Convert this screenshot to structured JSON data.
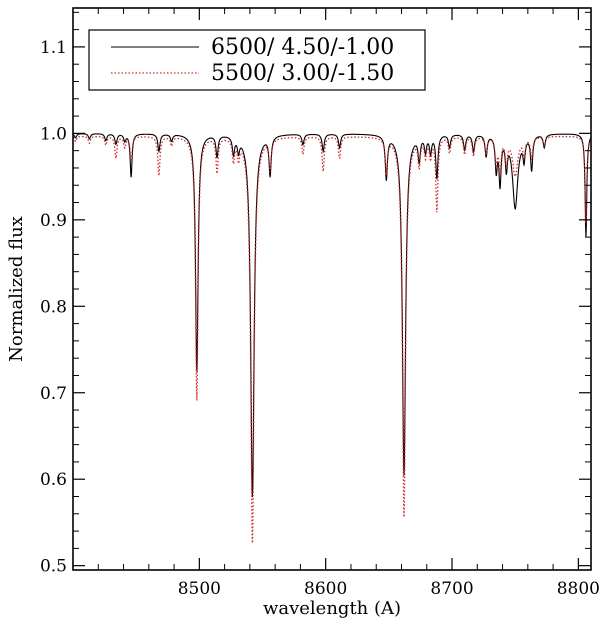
{
  "chart_data": {
    "type": "line",
    "xlabel": "wavelength (A)",
    "ylabel": "Normalized flux",
    "xlim": [
      8400,
      8810
    ],
    "ylim": [
      0.495,
      1.145
    ],
    "xticks": [
      8500,
      8600,
      8700,
      8800
    ],
    "yticks": [
      0.5,
      0.6,
      0.7,
      0.8,
      0.9,
      1.0,
      1.1
    ],
    "legend_position": "top-left",
    "grid": false,
    "series": [
      {
        "name": "6500/ 4.50/-1.00",
        "color": "#000000",
        "style": "solid",
        "continuum": 1.0,
        "lines": [
          {
            "x": 8402,
            "depth": 0.005,
            "width": 1.0
          },
          {
            "x": 8413,
            "depth": 0.006,
            "width": 1.0
          },
          {
            "x": 8426,
            "depth": 0.008,
            "width": 1.0
          },
          {
            "x": 8434,
            "depth": 0.012,
            "width": 1.0
          },
          {
            "x": 8441,
            "depth": 0.008,
            "width": 1.0
          },
          {
            "x": 8446,
            "depth": 0.05,
            "width": 0.9
          },
          {
            "x": 8468,
            "depth": 0.02,
            "width": 1.0
          },
          {
            "x": 8478,
            "depth": 0.008,
            "width": 1.0
          },
          {
            "x": 8498,
            "depth": 0.275,
            "width": 1.2
          },
          {
            "x": 8514,
            "depth": 0.025,
            "width": 1.0
          },
          {
            "x": 8527,
            "depth": 0.02,
            "width": 1.0
          },
          {
            "x": 8531,
            "depth": 0.015,
            "width": 1.0
          },
          {
            "x": 8542,
            "depth": 0.42,
            "width": 1.6
          },
          {
            "x": 8556,
            "depth": 0.045,
            "width": 1.0
          },
          {
            "x": 8582,
            "depth": 0.012,
            "width": 1.0
          },
          {
            "x": 8598,
            "depth": 0.02,
            "width": 1.0
          },
          {
            "x": 8611,
            "depth": 0.016,
            "width": 1.0
          },
          {
            "x": 8648,
            "depth": 0.05,
            "width": 1.0
          },
          {
            "x": 8662,
            "depth": 0.395,
            "width": 1.5
          },
          {
            "x": 8674,
            "depth": 0.028,
            "width": 1.0
          },
          {
            "x": 8679,
            "depth": 0.018,
            "width": 1.0
          },
          {
            "x": 8683,
            "depth": 0.02,
            "width": 1.0
          },
          {
            "x": 8688,
            "depth": 0.05,
            "width": 1.0
          },
          {
            "x": 8698,
            "depth": 0.015,
            "width": 1.0
          },
          {
            "x": 8710,
            "depth": 0.018,
            "width": 1.0
          },
          {
            "x": 8717,
            "depth": 0.02,
            "width": 1.0
          },
          {
            "x": 8727,
            "depth": 0.025,
            "width": 1.0
          },
          {
            "x": 8735,
            "depth": 0.04,
            "width": 1.0
          },
          {
            "x": 8738,
            "depth": 0.055,
            "width": 1.0
          },
          {
            "x": 8743,
            "depth": 0.035,
            "width": 1.0
          },
          {
            "x": 8750,
            "depth": 0.085,
            "width": 2.5
          },
          {
            "x": 8757,
            "depth": 0.025,
            "width": 1.0
          },
          {
            "x": 8763,
            "depth": 0.04,
            "width": 1.0
          },
          {
            "x": 8773,
            "depth": 0.015,
            "width": 1.0
          },
          {
            "x": 8806,
            "depth": 0.12,
            "width": 0.8
          }
        ]
      },
      {
        "name": "5500/ 3.00/-1.50",
        "color": "#d62728",
        "style": "dotted",
        "continuum": 0.997,
        "lines": [
          {
            "x": 8402,
            "depth": 0.006,
            "width": 1.0
          },
          {
            "x": 8413,
            "depth": 0.008,
            "width": 1.0
          },
          {
            "x": 8426,
            "depth": 0.01,
            "width": 1.0
          },
          {
            "x": 8434,
            "depth": 0.025,
            "width": 1.0
          },
          {
            "x": 8441,
            "depth": 0.012,
            "width": 1.0
          },
          {
            "x": 8446,
            "depth": 0.03,
            "width": 0.9
          },
          {
            "x": 8468,
            "depth": 0.045,
            "width": 1.0
          },
          {
            "x": 8478,
            "depth": 0.01,
            "width": 1.0
          },
          {
            "x": 8498,
            "depth": 0.305,
            "width": 1.2
          },
          {
            "x": 8514,
            "depth": 0.04,
            "width": 1.0
          },
          {
            "x": 8527,
            "depth": 0.025,
            "width": 1.0
          },
          {
            "x": 8531,
            "depth": 0.02,
            "width": 1.0
          },
          {
            "x": 8542,
            "depth": 0.47,
            "width": 1.6
          },
          {
            "x": 8556,
            "depth": 0.035,
            "width": 1.0
          },
          {
            "x": 8582,
            "depth": 0.02,
            "width": 1.0
          },
          {
            "x": 8598,
            "depth": 0.04,
            "width": 1.0
          },
          {
            "x": 8611,
            "depth": 0.025,
            "width": 1.0
          },
          {
            "x": 8648,
            "depth": 0.04,
            "width": 1.0
          },
          {
            "x": 8662,
            "depth": 0.44,
            "width": 1.5
          },
          {
            "x": 8674,
            "depth": 0.03,
            "width": 1.0
          },
          {
            "x": 8679,
            "depth": 0.02,
            "width": 1.0
          },
          {
            "x": 8683,
            "depth": 0.022,
            "width": 1.0
          },
          {
            "x": 8688,
            "depth": 0.085,
            "width": 1.0
          },
          {
            "x": 8698,
            "depth": 0.018,
            "width": 1.0
          },
          {
            "x": 8710,
            "depth": 0.02,
            "width": 1.0
          },
          {
            "x": 8717,
            "depth": 0.022,
            "width": 1.0
          },
          {
            "x": 8727,
            "depth": 0.02,
            "width": 1.0
          },
          {
            "x": 8735,
            "depth": 0.03,
            "width": 1.0
          },
          {
            "x": 8738,
            "depth": 0.04,
            "width": 1.0
          },
          {
            "x": 8743,
            "depth": 0.03,
            "width": 1.0
          },
          {
            "x": 8750,
            "depth": 0.045,
            "width": 2.5
          },
          {
            "x": 8757,
            "depth": 0.02,
            "width": 1.0
          },
          {
            "x": 8763,
            "depth": 0.025,
            "width": 1.0
          },
          {
            "x": 8773,
            "depth": 0.01,
            "width": 1.0
          },
          {
            "x": 8806,
            "depth": 0.1,
            "width": 0.8
          }
        ]
      }
    ]
  }
}
